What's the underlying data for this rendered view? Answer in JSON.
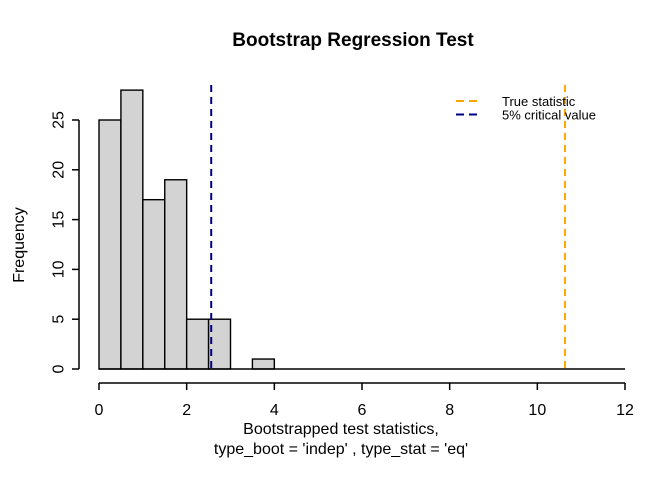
{
  "figure": {
    "background": "#FFFFFF",
    "text_color": "#000000"
  },
  "chart_data": {
    "type": "bar",
    "subtype": "histogram",
    "title": "Bootstrap Regression Test",
    "xlabel_line1": "Bootstrapped test statistics,",
    "xlabel_line2": "type_boot = 'indep' , type_stat = 'eq'",
    "ylabel": "Frequency",
    "bin_edges": [
      0,
      0.5,
      1.0,
      1.5,
      2.0,
      2.5,
      3.0,
      3.5,
      4.0
    ],
    "frequencies": [
      25,
      28,
      17,
      19,
      5,
      5,
      0,
      1
    ],
    "xlim": [
      0,
      12
    ],
    "ylim": [
      0,
      25
    ],
    "xticks": [
      0,
      2,
      4,
      6,
      8,
      10,
      12
    ],
    "yticks": [
      0,
      5,
      10,
      15,
      20,
      25
    ],
    "grid": false,
    "bar_fill": "#D3D3D3",
    "bar_stroke": "#000000",
    "axis_color": "#000000",
    "vlines": [
      {
        "name": "true-statistic",
        "x": 10.63,
        "color": "#FFA500",
        "style": "dashed"
      },
      {
        "name": "critical-value",
        "x": 2.56,
        "color": "#000080",
        "style": "dashed"
      }
    ],
    "legend": {
      "position": "topright",
      "frame": false,
      "entries": [
        {
          "label": "True statistic",
          "color": "#FFA500",
          "style": "dashed"
        },
        {
          "label": "5% critical value",
          "color": "#000080",
          "style": "dashed"
        }
      ]
    }
  }
}
